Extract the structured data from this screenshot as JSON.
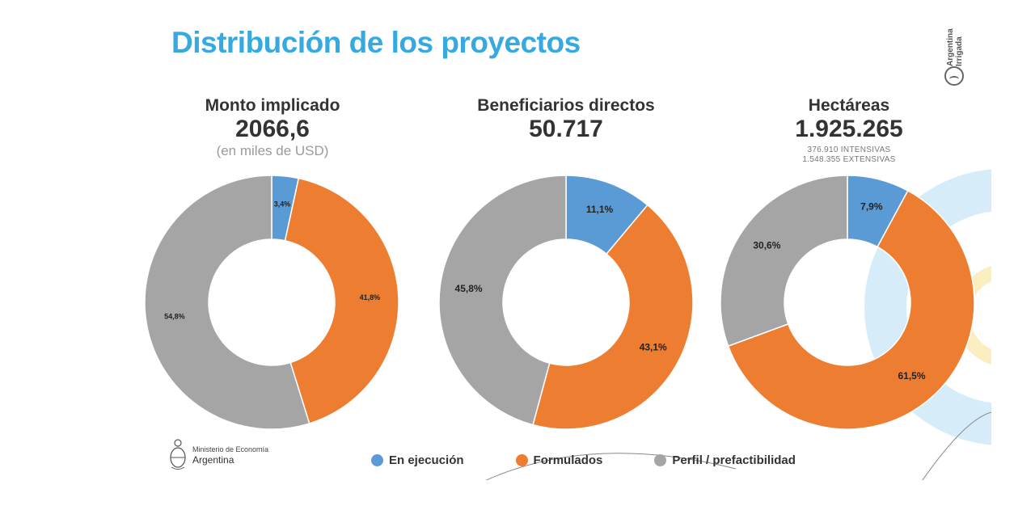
{
  "title": "Distribución de los proyectos",
  "brand": {
    "line1": "Argentina",
    "line2": "Irrigada",
    "icon": "argentina-irrigada-logo"
  },
  "ministry": {
    "line1": "Ministerio de Economía",
    "line2": "Argentina",
    "icon": "national-coat-of-arms"
  },
  "colors": {
    "en_ejecucion": "#5b9bd5",
    "formulados": "#ed7d31",
    "perfil": "#a5a5a5",
    "title": "#36a9e1"
  },
  "legend": [
    {
      "label": "En ejecución",
      "color": "#5b9bd5"
    },
    {
      "label": "Formulados",
      "color": "#ed7d31"
    },
    {
      "label": "Perfil / prefactibilidad",
      "color": "#a5a5a5"
    }
  ],
  "chart_data": [
    {
      "type": "pie",
      "title": "Monto implicado",
      "value": "2066,6",
      "subtitle": "(en miles de USD)",
      "notes": [],
      "categories": [
        "En ejecución",
        "Formulados",
        "Perfil / prefactibilidad"
      ],
      "values": [
        3.4,
        41.8,
        54.8
      ],
      "labels": [
        "3,4%",
        "41,8%",
        "54,8%"
      ],
      "colors": [
        "#5b9bd5",
        "#ed7d31",
        "#a5a5a5"
      ]
    },
    {
      "type": "pie",
      "title": "Beneficiarios directos",
      "value": "50.717",
      "subtitle": "",
      "notes": [],
      "categories": [
        "En ejecución",
        "Formulados",
        "Perfil / prefactibilidad"
      ],
      "values": [
        11.1,
        43.1,
        45.8
      ],
      "labels": [
        "11,1%",
        "43,1%",
        "45,8%"
      ],
      "colors": [
        "#5b9bd5",
        "#ed7d31",
        "#a5a5a5"
      ]
    },
    {
      "type": "pie",
      "title": "Hectáreas",
      "value": "1.925.265",
      "subtitle": "",
      "notes": [
        "376.910  INTENSIVAS",
        "1.548.355  EXTENSIVAS"
      ],
      "categories": [
        "En ejecución",
        "Formulados",
        "Perfil / prefactibilidad"
      ],
      "values": [
        7.9,
        61.5,
        30.6
      ],
      "labels": [
        "7,9%",
        "61,5%",
        "30,6%"
      ],
      "colors": [
        "#5b9bd5",
        "#ed7d31",
        "#a5a5a5"
      ]
    }
  ]
}
